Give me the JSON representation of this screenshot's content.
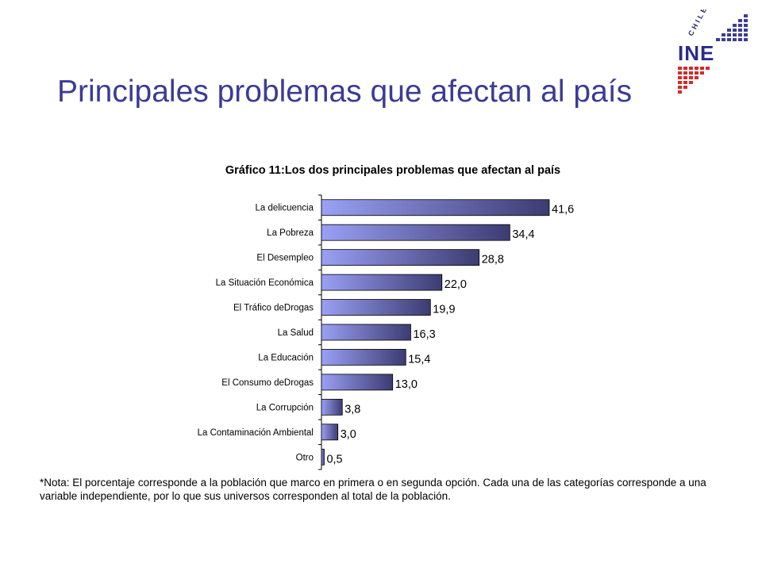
{
  "slide": {
    "title": "Principales problemas que afectan al país",
    "logo": {
      "country_label": "CHILE",
      "brand_label": "INE",
      "icon": "ine-logo-icon"
    },
    "note": "*Nota: El porcentaje corresponde a la población que marco en primera o en segunda opción. Cada una de las categorías corresponde a una variable independiente, por lo que sus universos corresponden al total de la población."
  },
  "chart_data": {
    "type": "bar",
    "orientation": "horizontal",
    "title": "Gráfico 11:Los dos principales problemas que afectan al país",
    "xlabel": "",
    "ylabel": "",
    "xlim": [
      0,
      45
    ],
    "grid": false,
    "categories": [
      "La delicuencia",
      "La Pobreza",
      "El Desempleo",
      "La Situación Económica",
      "El Tráfico deDrogas",
      "La Salud",
      "La Educación",
      "El Consumo deDrogas",
      "La Corrupción",
      "La Contaminación Ambiental",
      "Otro"
    ],
    "values": [
      41.6,
      34.4,
      28.8,
      22.0,
      19.9,
      16.3,
      15.4,
      13.0,
      3.8,
      3.0,
      0.5
    ],
    "value_labels": [
      "41,6",
      "34,4",
      "28,8",
      "22,0",
      "19,9",
      "16,3",
      "15,4",
      "13,0",
      "3,8",
      "3,0",
      "0,5"
    ],
    "bar_color_light": "#9aa0f4",
    "bar_color_dark": "#3c3c72"
  }
}
